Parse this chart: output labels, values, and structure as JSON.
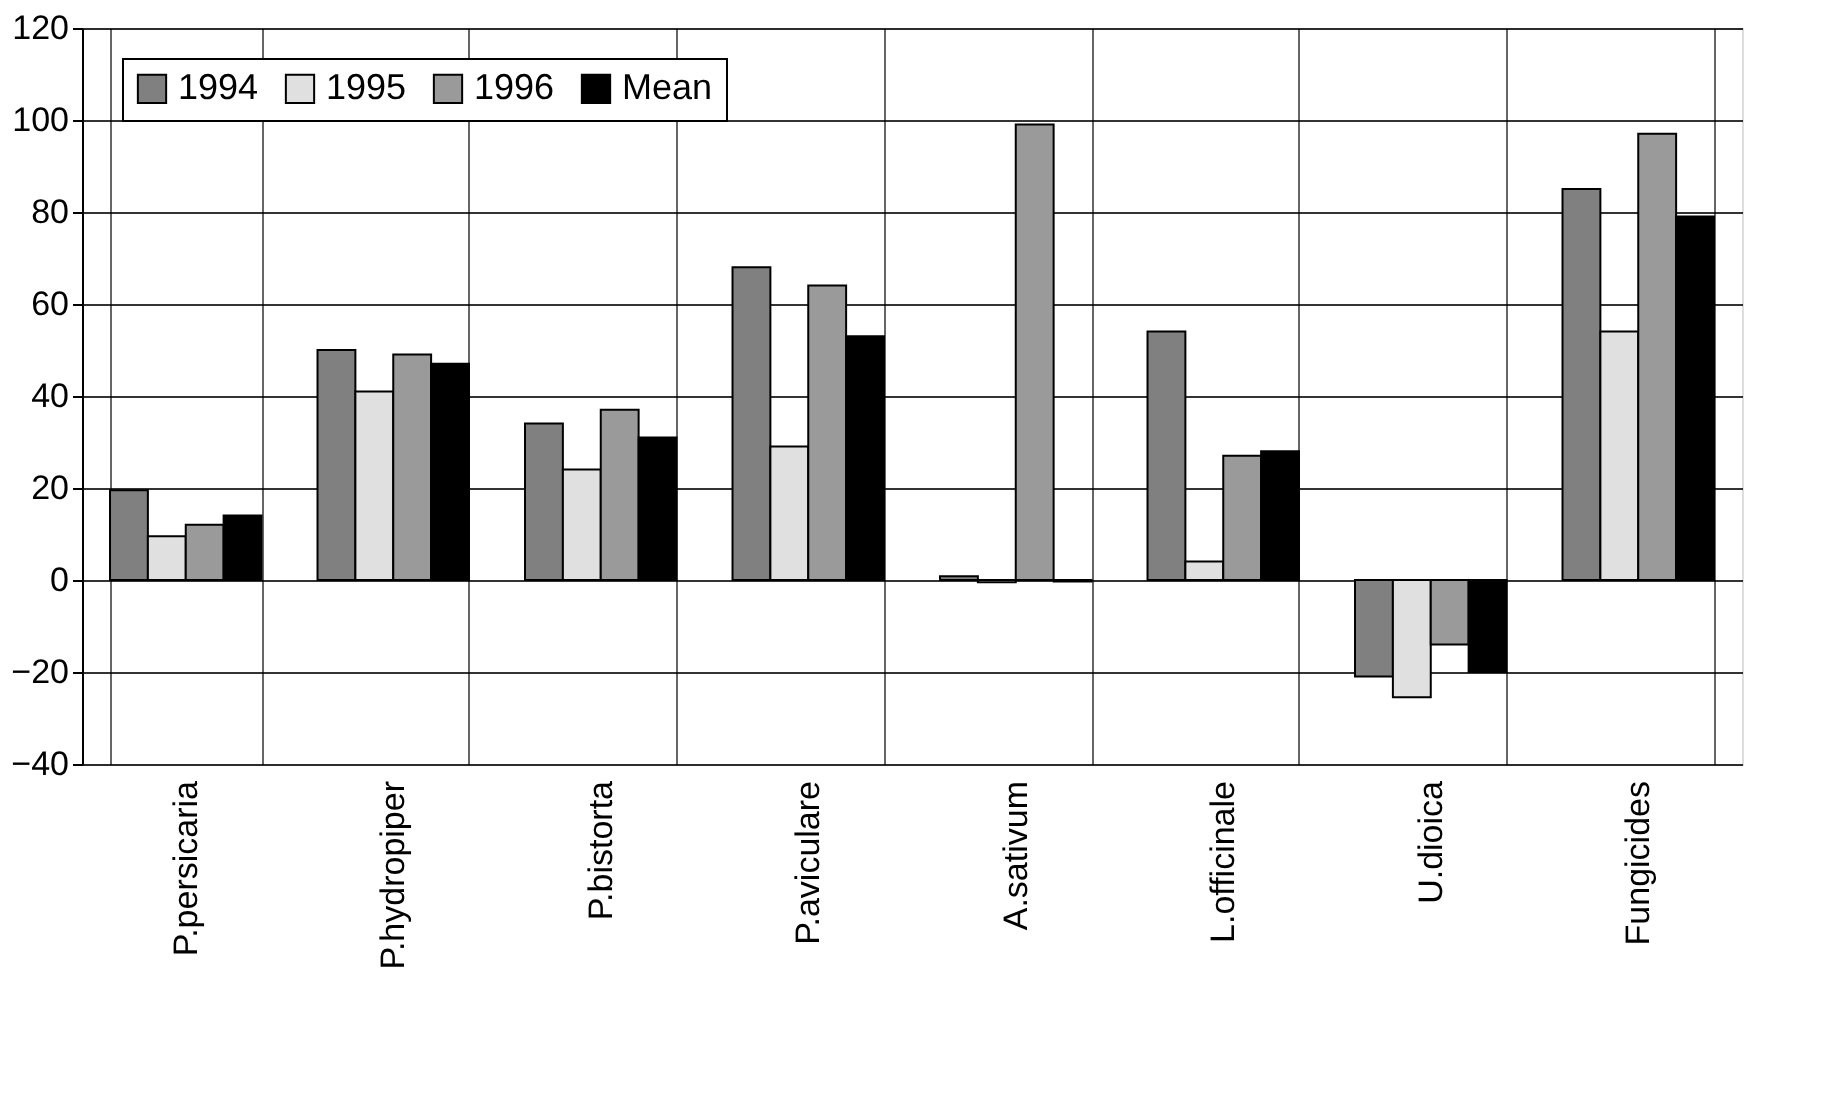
{
  "chart_data": {
    "type": "bar",
    "categories": [
      "P.persicaria",
      "P.hydropiper",
      "P.bistorta",
      "P.aviculare",
      "A.sativum",
      "L.officinale",
      "U.dioica",
      "Fungicides"
    ],
    "series": [
      {
        "name": "1994",
        "color": "#808080",
        "values": [
          19.5,
          50,
          34,
          68,
          0.8,
          54,
          -21,
          85
        ]
      },
      {
        "name": "1995",
        "color": "#e0e0e0",
        "values": [
          9.5,
          41,
          24,
          29,
          -0.5,
          4,
          -25.5,
          54
        ]
      },
      {
        "name": "1996",
        "color": "#9a9a9a",
        "values": [
          12,
          49,
          37,
          64,
          99,
          27,
          -14,
          97
        ]
      },
      {
        "name": "Mean",
        "color": "#000000",
        "values": [
          14,
          47,
          31,
          53,
          -0.3,
          28,
          -20,
          79
        ]
      }
    ],
    "ylim": [
      -40,
      120
    ],
    "yticks": [
      -40,
      -20,
      0,
      20,
      40,
      60,
      80,
      100,
      120
    ],
    "grid": true,
    "legend": "top left"
  }
}
